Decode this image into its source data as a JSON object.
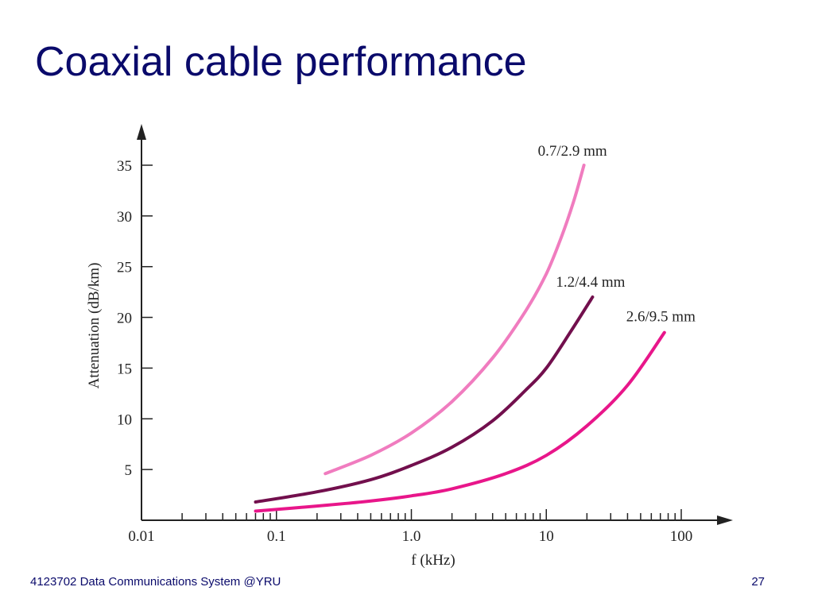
{
  "slide": {
    "title": "Coaxial cable performance",
    "footer_left": "4123702 Data Communications System @YRU",
    "page_number": "27"
  },
  "colors": {
    "title": "#0a0a6b",
    "axis": "#222222",
    "series": [
      "#f07cbf",
      "#720f4d",
      "#e8168a"
    ]
  },
  "chart_data": {
    "type": "line",
    "title": "",
    "xlabel": "f (kHz)",
    "ylabel": "Attenuation (dB/km)",
    "x_scale": "log",
    "xlim": [
      0.01,
      100
    ],
    "ylim": [
      0,
      35
    ],
    "x_ticks": [
      "0.01",
      "0.1",
      "1.0",
      "10",
      "100"
    ],
    "y_ticks": [
      "5",
      "10",
      "15",
      "20",
      "25",
      "30",
      "35"
    ],
    "grid": false,
    "legend": "labels at line ends",
    "series": [
      {
        "name": "0.7/2.9 mm",
        "x": [
          0.23,
          0.5,
          1.0,
          2.0,
          4.0,
          7.0,
          10.0,
          13.0,
          16.0,
          19.0
        ],
        "y": [
          4.6,
          6.4,
          8.6,
          11.7,
          16.0,
          20.6,
          24.3,
          28.0,
          31.5,
          35.0
        ]
      },
      {
        "name": "1.2/4.4 mm",
        "x": [
          0.07,
          0.2,
          0.5,
          1.0,
          2.0,
          4.0,
          7.0,
          10.0,
          15.0,
          22.0
        ],
        "y": [
          1.8,
          2.8,
          4.0,
          5.4,
          7.2,
          9.8,
          12.8,
          15.0,
          18.5,
          22.0
        ]
      },
      {
        "name": "2.6/9.5 mm",
        "x": [
          0.07,
          0.2,
          0.5,
          1.0,
          2.0,
          5.0,
          10.0,
          20.0,
          40.0,
          75.0
        ],
        "y": [
          0.9,
          1.4,
          1.9,
          2.4,
          3.1,
          4.6,
          6.4,
          9.3,
          13.3,
          18.5
        ]
      }
    ]
  }
}
